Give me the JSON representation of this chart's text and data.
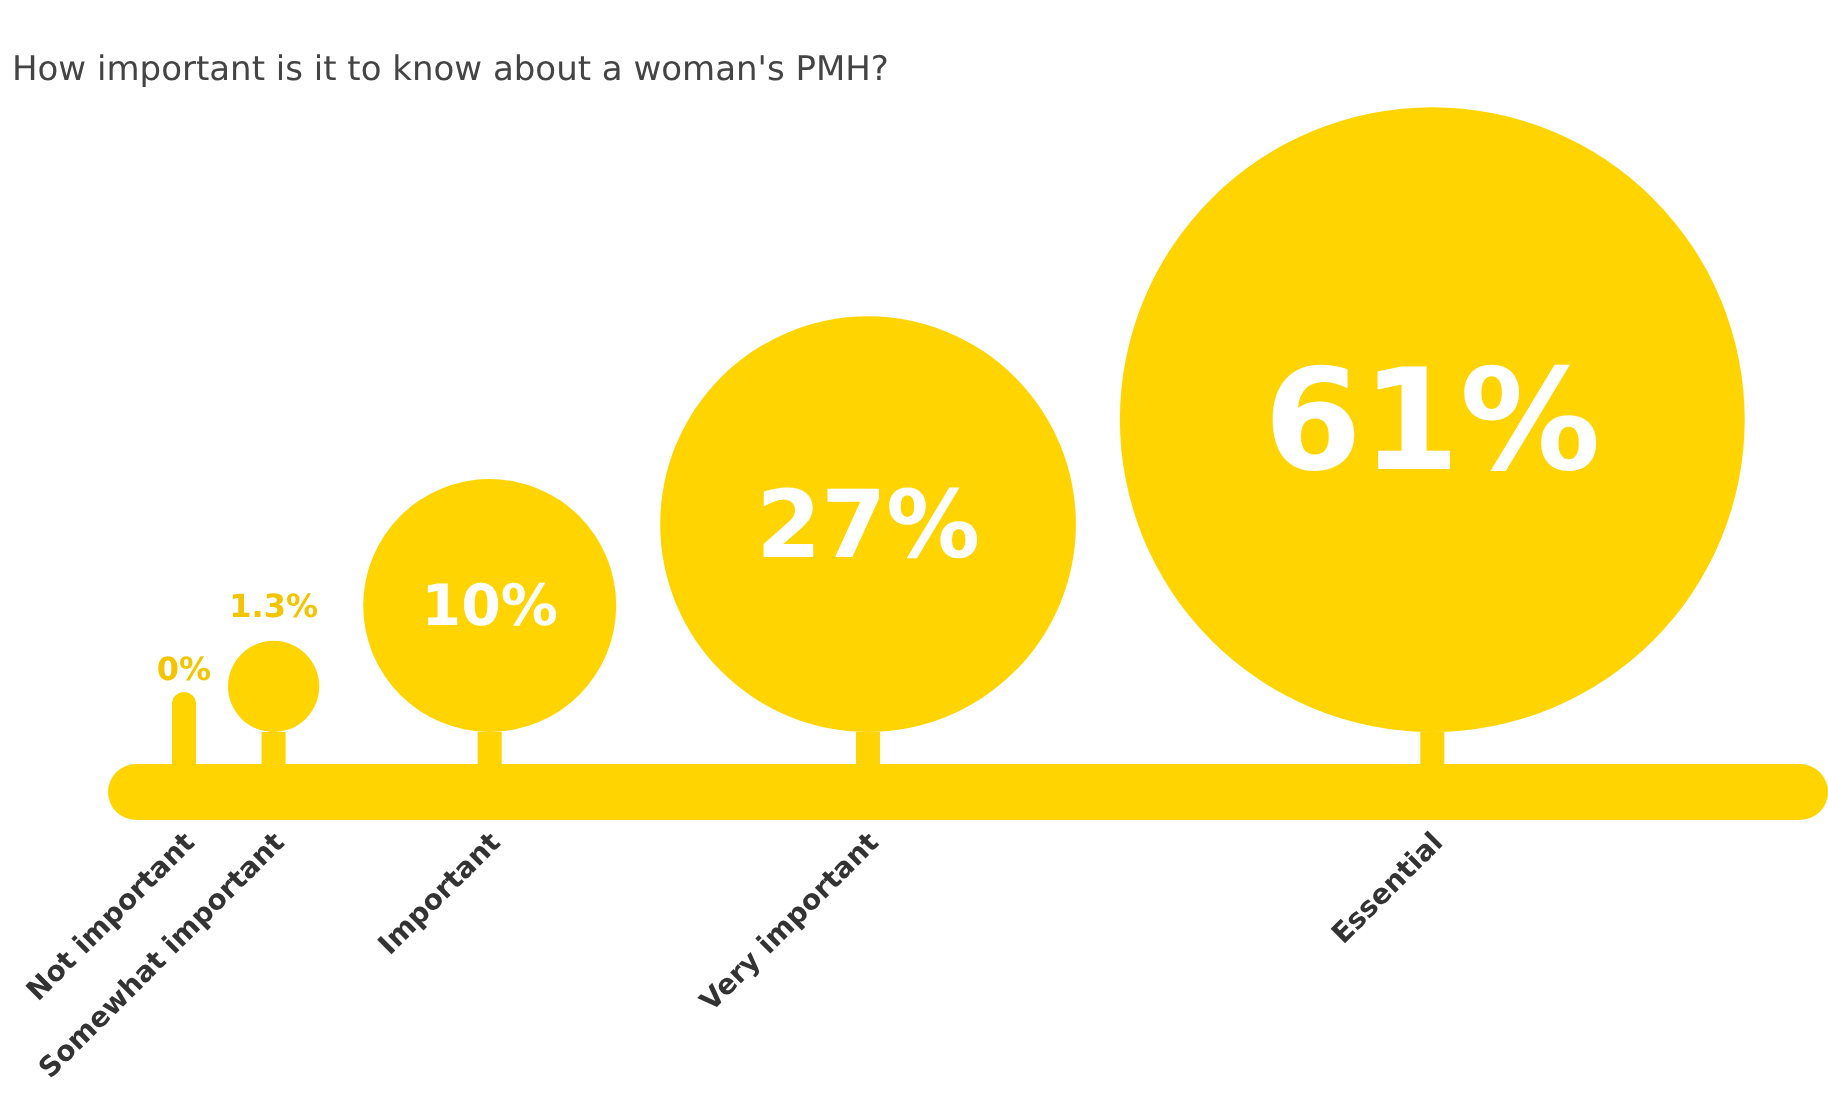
{
  "chart_data": {
    "type": "other",
    "title": "How important is it to know about a woman's PMH?",
    "categories": [
      "Not important",
      "Somewhat important",
      "Important",
      "Very important",
      "Essential"
    ],
    "values": [
      0,
      1.3,
      10,
      27,
      61
    ],
    "value_labels": [
      "0%",
      "1.3%",
      "10%",
      "27%",
      "61%"
    ],
    "color": "#ffd400"
  }
}
